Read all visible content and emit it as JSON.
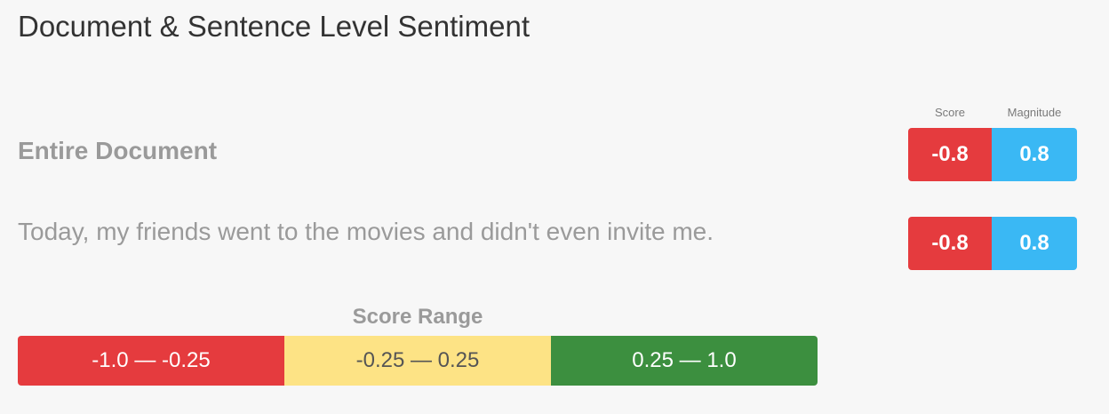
{
  "page": {
    "title": "Document & Sentence Level Sentiment"
  },
  "columns": {
    "score": "Score",
    "magnitude": "Magnitude"
  },
  "rows": [
    {
      "label": "Entire Document",
      "score": "-0.8",
      "magnitude": "0.8"
    },
    {
      "label": "Today, my friends went to the movies and didn't even invite me.",
      "score": "-0.8",
      "magnitude": "0.8"
    }
  ],
  "score_range": {
    "title": "Score Range",
    "segments": [
      {
        "label": "-1.0 — -0.25",
        "color": "#e53b3e"
      },
      {
        "label": "-0.25 — 0.25",
        "color": "#fde385"
      },
      {
        "label": "0.25 — 1.0",
        "color": "#3c8f3f"
      }
    ]
  },
  "colors": {
    "negative": "#e53b3e",
    "magnitude": "#3ab8f4",
    "neutral": "#fde385",
    "positive": "#3c8f3f"
  }
}
